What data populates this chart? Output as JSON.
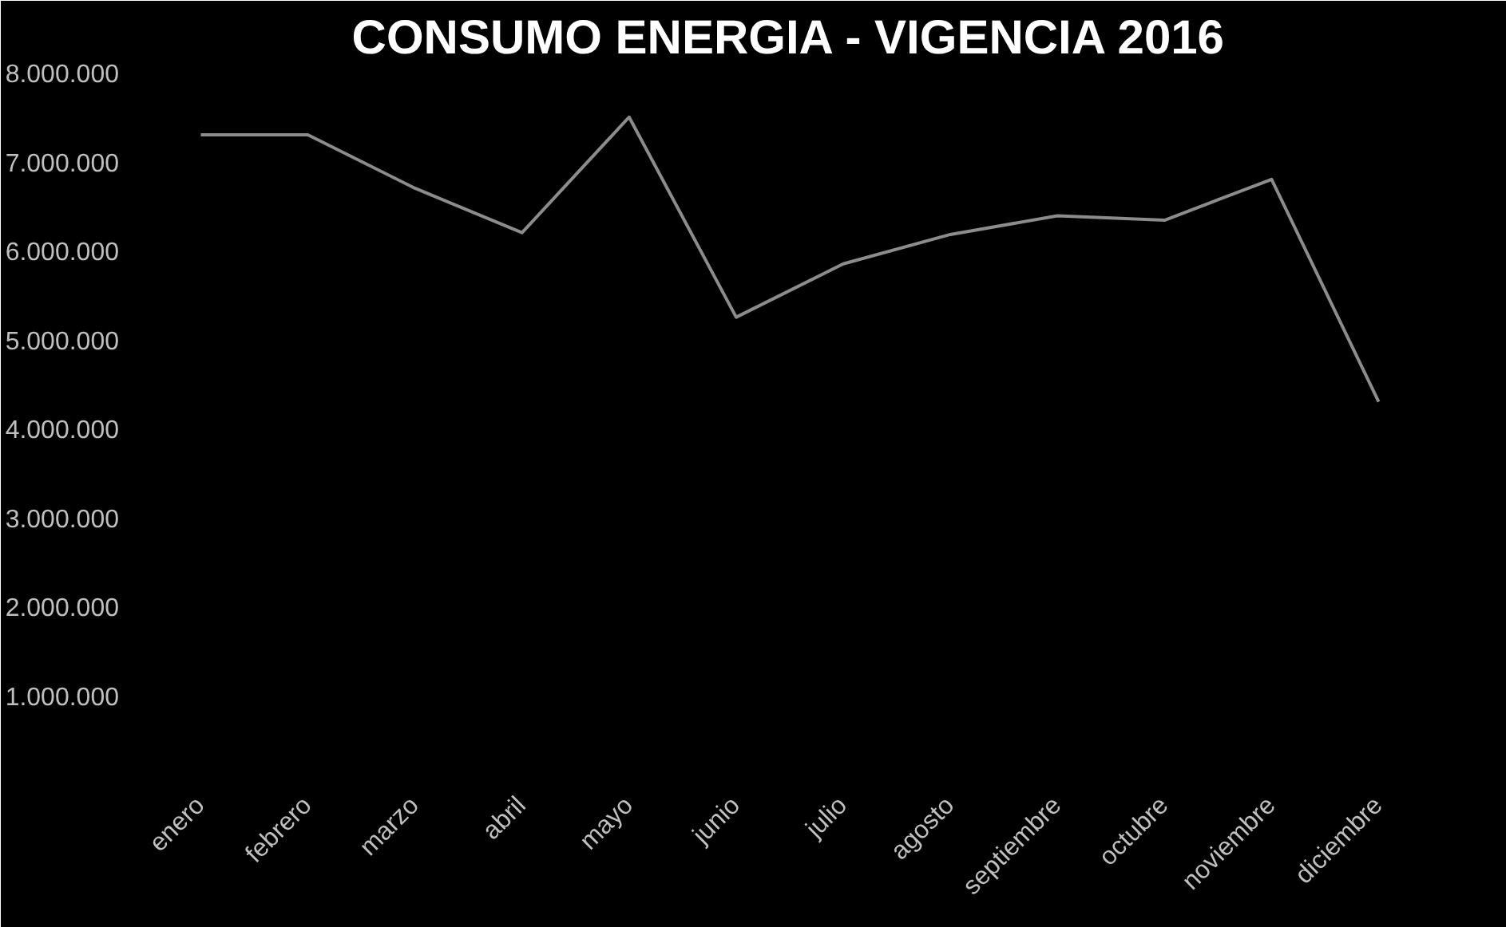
{
  "chart_data": {
    "type": "line",
    "title": "CONSUMO ENERGIA - VIGENCIA 2016",
    "categories": [
      "enero",
      "febrero",
      "marzo",
      "abril",
      "mayo",
      "junio",
      "julio",
      "agosto",
      "septiembre",
      "octubre",
      "noviembre",
      "diciembre"
    ],
    "series": [
      {
        "color": "#8c8c8c",
        "values": [
          7300000,
          7300000,
          6700000,
          6200000,
          7500000,
          5250000,
          5850000,
          6180000,
          6390000,
          6340000,
          6800000,
          4300000
        ]
      }
    ],
    "ylim": [
      0,
      8000000
    ],
    "yticks": [
      {
        "value": 1000000,
        "label": "1.000.000"
      },
      {
        "value": 2000000,
        "label": "2.000.000"
      },
      {
        "value": 3000000,
        "label": "3.000.000"
      },
      {
        "value": 4000000,
        "label": "4.000.000"
      },
      {
        "value": 5000000,
        "label": "5.000.000"
      },
      {
        "value": 6000000,
        "label": "6.000.000"
      },
      {
        "value": 7000000,
        "label": "7.000.000"
      },
      {
        "value": 8000000,
        "label": "8.000.000"
      }
    ],
    "grid": false,
    "marker": "none",
    "line_style": "solid"
  }
}
